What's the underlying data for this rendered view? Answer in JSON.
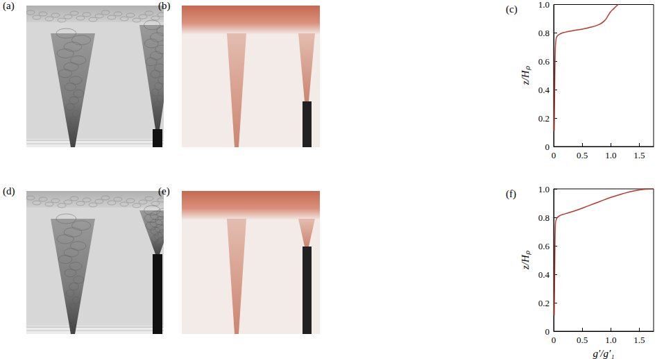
{
  "images": [
    {
      "label": "(a)"
    },
    {
      "label": "(b)"
    },
    {
      "label": "(d)"
    },
    {
      "label": "(e)"
    }
  ],
  "chart_data": [
    {
      "type": "line",
      "title": "(c)",
      "ylabel": "z/Hₚ",
      "grid": false,
      "xlim": [
        0,
        1.75
      ],
      "xticks": [
        0,
        0.5,
        {
          "value": 1,
          "label": "1.0"
        },
        1.5
      ],
      "ylim": [
        0,
        1
      ],
      "yticks": [
        0,
        0.2,
        0.4,
        0.6,
        0.8,
        {
          "value": 1,
          "label": "1.0"
        }
      ],
      "series": [
        {
          "color": "#b8372d",
          "x": [
            0.01,
            0.02,
            0.03,
            0.04,
            0.05,
            0.1,
            0.2,
            0.4,
            0.6,
            0.8,
            0.9,
            0.95,
            1.0,
            1.05,
            1.1,
            1.13
          ],
          "values": [
            0.11,
            0.5,
            0.7,
            0.75,
            0.77,
            0.79,
            0.805,
            0.82,
            0.835,
            0.86,
            0.89,
            0.92,
            0.95,
            0.97,
            0.99,
            1.0
          ]
        }
      ]
    },
    {
      "type": "line",
      "title": "(f)",
      "xlabel": "g′/g′₁",
      "ylabel": "z/Hₚ",
      "grid": false,
      "xlim": [
        0,
        1.75
      ],
      "xticks": [
        0,
        0.5,
        {
          "value": 1,
          "label": "1.0"
        },
        1.5
      ],
      "ylim": [
        0,
        1
      ],
      "yticks": [
        0,
        0.2,
        0.4,
        0.6,
        0.8,
        {
          "value": 1,
          "label": "1.0"
        }
      ],
      "series": [
        {
          "color": "#b8372d",
          "x": [
            0.01,
            0.02,
            0.03,
            0.05,
            0.1,
            0.2,
            0.4,
            0.6,
            0.8,
            1.0,
            1.2,
            1.4,
            1.6,
            1.75
          ],
          "values": [
            0.11,
            0.5,
            0.75,
            0.79,
            0.81,
            0.825,
            0.85,
            0.88,
            0.91,
            0.94,
            0.965,
            0.985,
            0.997,
            1.0
          ]
        }
      ]
    }
  ]
}
